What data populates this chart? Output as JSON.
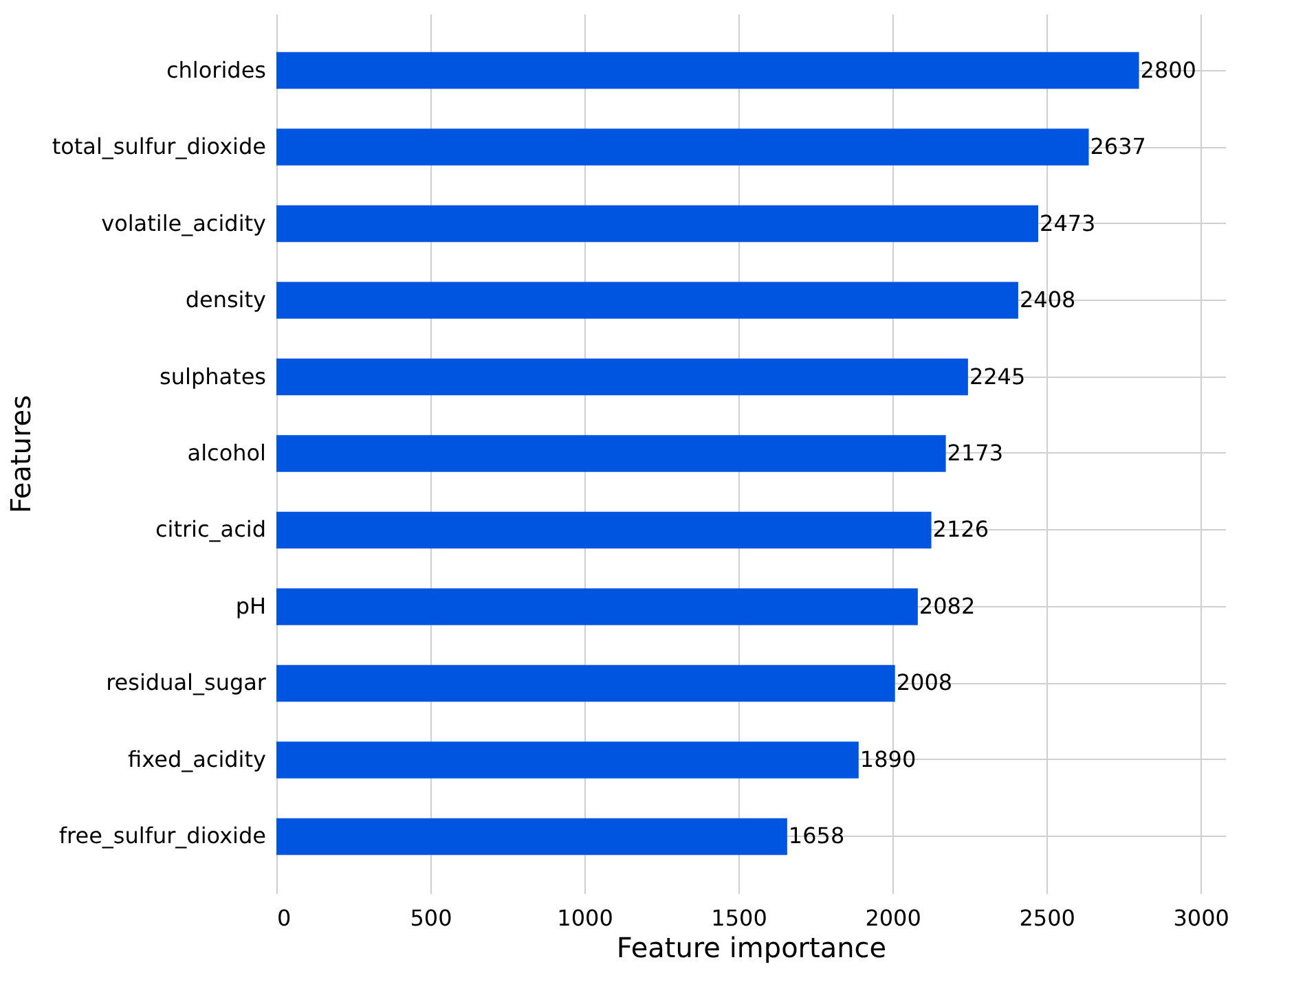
{
  "chart_data": {
    "type": "bar",
    "orientation": "horizontal",
    "xlabel": "Feature importance",
    "ylabel": "Features",
    "categories": [
      "chlorides",
      "total_sulfur_dioxide",
      "volatile_acidity",
      "density",
      "sulphates",
      "alcohol",
      "citric_acid",
      "pH",
      "residual_sugar",
      "fixed_acidity",
      "free_sulfur_dioxide"
    ],
    "values": [
      2800,
      2637,
      2473,
      2408,
      2245,
      2173,
      2126,
      2082,
      2008,
      1890,
      1658
    ],
    "color": "#0055e0",
    "xlim": [
      0,
      3080
    ],
    "xticks": [
      0,
      500,
      1000,
      1500,
      2000,
      2500,
      3000
    ],
    "grid": true,
    "data_labels": true
  }
}
